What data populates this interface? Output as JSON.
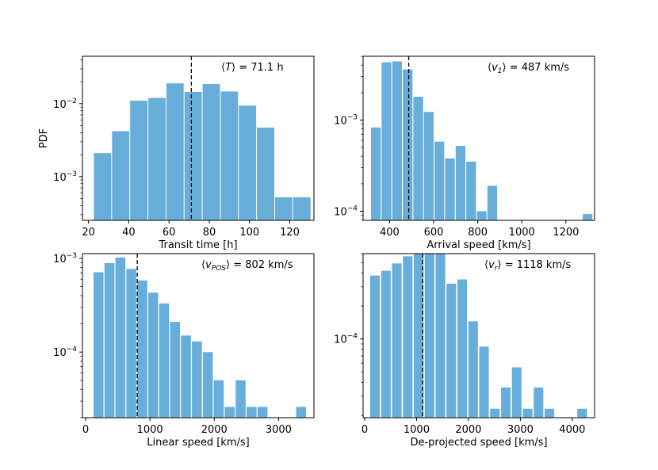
{
  "bar_color": "#67aedb",
  "chart_data": [
    {
      "type": "bar",
      "name": "transit-time",
      "yscale": "log",
      "xlabel": "Transit time [h]",
      "ylabel": "PDF",
      "xlim": [
        17,
        132
      ],
      "ylim_log": [
        -3.6,
        -1.35
      ],
      "bin_width": 8.6,
      "bins": [
        [
          27,
          0.0021
        ],
        [
          36,
          0.0042
        ],
        [
          45,
          0.011
        ],
        [
          54,
          0.012
        ],
        [
          63,
          0.019
        ],
        [
          72,
          0.0145
        ],
        [
          81,
          0.0186
        ],
        [
          90,
          0.0147
        ],
        [
          99,
          0.0094
        ],
        [
          108,
          0.0047
        ],
        [
          117,
          0.00052
        ],
        [
          126,
          0.00052
        ]
      ],
      "mean_x": 71.1,
      "annotation": {
        "prefix": "⟨",
        "var": "T",
        "sub": "",
        "suffix": "⟩ =  71.1 h"
      },
      "xticks": [
        20,
        40,
        60,
        80,
        100,
        120
      ],
      "xtick_labels": [
        "20",
        "40",
        "60",
        "80",
        "100",
        "120"
      ],
      "yticks": [
        -3,
        -2
      ],
      "ytick_labels": [
        {
          "base": "10",
          "exp": "−3"
        },
        {
          "base": "10",
          "exp": "−2"
        }
      ]
    },
    {
      "type": "bar",
      "name": "arrival-speed",
      "yscale": "log",
      "xlabel": "Arrival speed [km/s]",
      "ylabel": "",
      "xlim": [
        280,
        1330
      ],
      "ylim_log": [
        -4.1,
        -2.3
      ],
      "bin_width": 44,
      "bins": [
        [
          338,
          0.00083
        ],
        [
          386,
          0.0043
        ],
        [
          434,
          0.0044
        ],
        [
          482,
          0.0036
        ],
        [
          530,
          0.0018
        ],
        [
          578,
          0.00123
        ],
        [
          626,
          0.00058
        ],
        [
          674,
          0.00038
        ],
        [
          722,
          0.00052
        ],
        [
          770,
          0.00035
        ],
        [
          818,
          0.0001
        ],
        [
          866,
          0.00019
        ],
        [
          1298,
          9.3e-05
        ]
      ],
      "mean_x": 487,
      "annotation": {
        "prefix": "⟨",
        "var": "v",
        "sub": "1",
        "suffix": "⟩ =  487 km/s"
      },
      "xticks": [
        400,
        600,
        800,
        1000,
        1200
      ],
      "xtick_labels": [
        "400",
        "600",
        "800",
        "1000",
        "1200"
      ],
      "yticks": [
        -4,
        -3
      ],
      "ytick_labels": [
        {
          "base": "10",
          "exp": "−4"
        },
        {
          "base": "10",
          "exp": "−3"
        }
      ]
    },
    {
      "type": "bar",
      "name": "linear-speed",
      "yscale": "log",
      "xlabel": "Linear speed [km/s]",
      "ylabel": "",
      "xlim": [
        -50,
        3550
      ],
      "ylim_log": [
        -4.7,
        -2.95
      ],
      "bin_width": 155,
      "bins": [
        [
          200,
          0.00071
        ],
        [
          370,
          0.00089
        ],
        [
          540,
          0.00102
        ],
        [
          710,
          0.00077
        ],
        [
          880,
          0.00058
        ],
        [
          1050,
          0.00043
        ],
        [
          1220,
          0.00033
        ],
        [
          1390,
          0.00021
        ],
        [
          1560,
          0.00015
        ],
        [
          1730,
          0.00013
        ],
        [
          1900,
          0.0001
        ],
        [
          2070,
          5e-05
        ],
        [
          2240,
          2.6e-05
        ],
        [
          2410,
          5e-05
        ],
        [
          2580,
          2.6e-05
        ],
        [
          2750,
          2.6e-05
        ],
        [
          3350,
          2.6e-05
        ]
      ],
      "mean_x": 802,
      "annotation": {
        "prefix": "⟨",
        "var": "v",
        "sub": "POS",
        "suffix": "⟩ =  802 km/s"
      },
      "xticks": [
        0,
        1000,
        2000,
        3000
      ],
      "xtick_labels": [
        "0",
        "1000",
        "2000",
        "3000"
      ],
      "yticks": [
        -4,
        -3
      ],
      "ytick_labels": [
        {
          "base": "10",
          "exp": "−4"
        },
        {
          "base": "10",
          "exp": "−3"
        }
      ]
    },
    {
      "type": "bar",
      "name": "de-projected-speed",
      "yscale": "log",
      "xlabel": "De-projected speed [km/s]",
      "ylabel": "",
      "xlim": [
        -30,
        4430
      ],
      "ylim_log": [
        -4.72,
        -3.22
      ],
      "bin_width": 185,
      "bins": [
        [
          200,
          0.00038
        ],
        [
          410,
          0.00042
        ],
        [
          620,
          0.00049
        ],
        [
          830,
          0.00057
        ],
        [
          1040,
          0.00073
        ],
        [
          1250,
          0.00061
        ],
        [
          1460,
          0.00061
        ],
        [
          1670,
          0.00032
        ],
        [
          1880,
          0.00035
        ],
        [
          2090,
          0.000145
        ],
        [
          2300,
          8.5e-05
        ],
        [
          2510,
          2.3e-05
        ],
        [
          2720,
          3.6e-05
        ],
        [
          2930,
          5.5e-05
        ],
        [
          3140,
          2.3e-05
        ],
        [
          3350,
          3.6e-05
        ],
        [
          3560,
          2.3e-05
        ],
        [
          4190,
          2.3e-05
        ]
      ],
      "mean_x": 1118,
      "annotation": {
        "prefix": "⟨",
        "var": "v",
        "sub": "r",
        "suffix": "⟩ =  1118 km/s"
      },
      "xticks": [
        0,
        1000,
        2000,
        3000,
        4000
      ],
      "xtick_labels": [
        "0",
        "1000",
        "2000",
        "3000",
        "4000"
      ],
      "yticks": [
        -4
      ],
      "ytick_labels": [
        {
          "base": "10",
          "exp": "−4"
        }
      ]
    }
  ]
}
